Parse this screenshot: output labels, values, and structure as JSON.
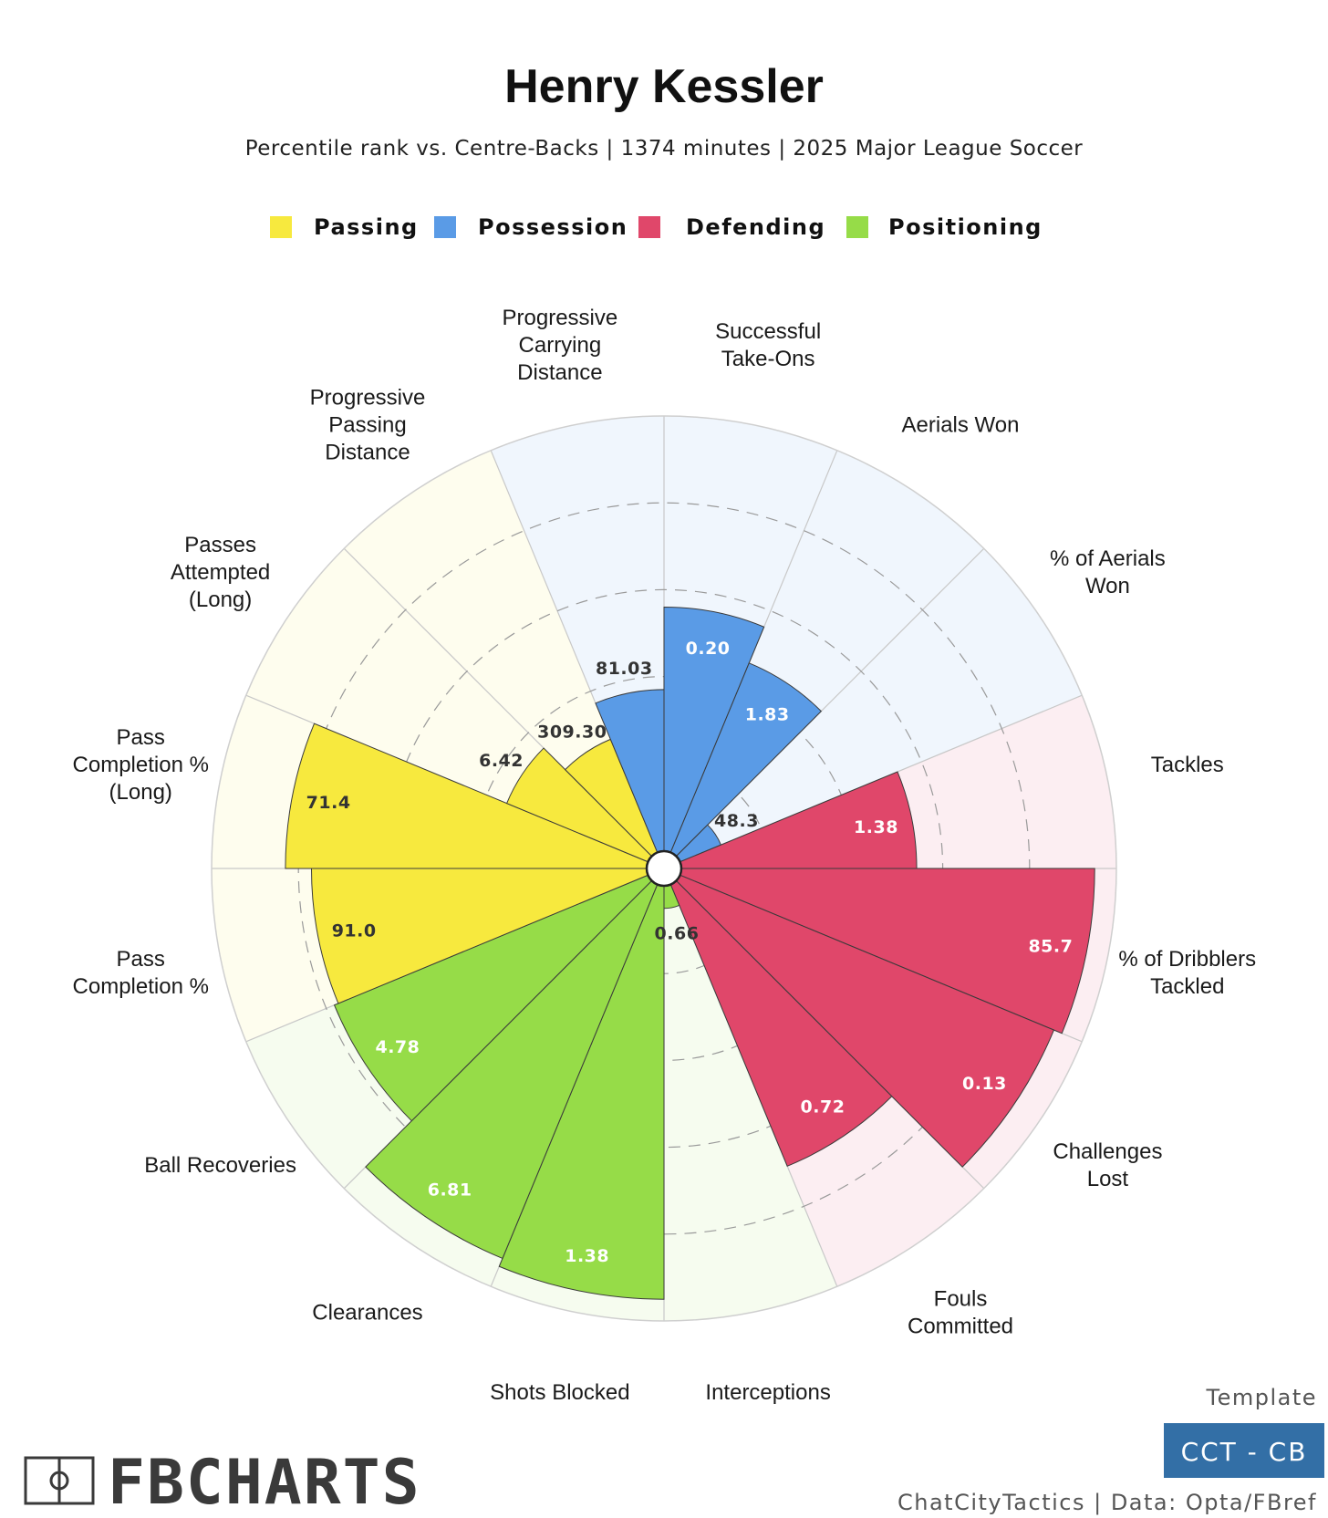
{
  "header": {
    "title": "Henry Kessler",
    "subtitle": "Percentile rank vs. Centre-Backs | 1374 minutes | 2025 Major League Soccer"
  },
  "legend": [
    {
      "label": "Passing",
      "color": "#f7e93e"
    },
    {
      "label": "Possession",
      "color": "#5a9be6"
    },
    {
      "label": "Defending",
      "color": "#e0476a"
    },
    {
      "label": "Positioning",
      "color": "#96dc48"
    }
  ],
  "chart_data": {
    "type": "polar-bar",
    "title": "Henry Kessler",
    "scale": "percentile",
    "r_range": [
      0,
      100
    ],
    "gridlines": [
      20,
      40,
      60,
      80
    ],
    "slices": [
      {
        "metric": "Successful\nTake-Ons",
        "category": "Possession",
        "value": "0.20",
        "percentile": 56
      },
      {
        "metric": "Aerials Won",
        "category": "Possession",
        "value": "1.83",
        "percentile": 47
      },
      {
        "metric": "% of Aerials\nWon",
        "category": "Possession",
        "value": "48.3",
        "percentile": 10
      },
      {
        "metric": "Tackles",
        "category": "Defending",
        "value": "1.38",
        "percentile": 54
      },
      {
        "metric": "% of Dribblers\nTackled",
        "category": "Defending",
        "value": "85.7",
        "percentile": 95
      },
      {
        "metric": "Challenges\nLost",
        "category": "Defending",
        "value": "0.13",
        "percentile": 93
      },
      {
        "metric": "Fouls\nCommitted",
        "category": "Defending",
        "value": "0.72",
        "percentile": 70
      },
      {
        "metric": "Interceptions",
        "category": "Positioning",
        "value": "0.66",
        "percentile": 5
      },
      {
        "metric": "Shots Blocked",
        "category": "Positioning",
        "value": "1.38",
        "percentile": 95
      },
      {
        "metric": "Clearances",
        "category": "Positioning",
        "value": "6.81",
        "percentile": 93
      },
      {
        "metric": "Ball Recoveries",
        "category": "Positioning",
        "value": "4.78",
        "percentile": 78
      },
      {
        "metric": "Pass\nCompletion %",
        "category": "Passing",
        "value": "91.0",
        "percentile": 77
      },
      {
        "metric": "Pass\nCompletion %\n(Long)",
        "category": "Passing",
        "value": "71.4",
        "percentile": 83
      },
      {
        "metric": "Passes\nAttempted\n(Long)",
        "category": "Passing",
        "value": "6.42",
        "percentile": 35
      },
      {
        "metric": "Progressive\nPassing\nDistance",
        "category": "Passing",
        "value": "309.30",
        "percentile": 28
      },
      {
        "metric": "Progressive\nCarrying\nDistance",
        "category": "Possession",
        "value": "81.03",
        "percentile": 37
      }
    ]
  },
  "footer": {
    "brand": "FBCHARTS",
    "template_label": "Template",
    "template_badge": "CCT - CB",
    "credits": "ChatCityTactics | Data: Opta/FBref"
  }
}
